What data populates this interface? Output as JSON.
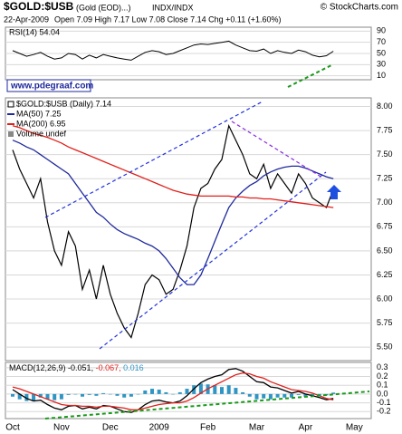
{
  "header": {
    "symbol": "$GOLD:$USB",
    "name": "(Gold (EOD)...)",
    "exchange": "INDX/INDX",
    "credit": "© StockCharts.com",
    "date": "22-Apr-2009",
    "quote": "Open 7.09 High 7.17 Low 7.08 Close 7.14 Chg +0.11 (+1.60%)"
  },
  "watermark": "www.pdegraaf.com",
  "chart_data": [
    {
      "type": "line",
      "title": "RSI(14) 54.04",
      "color": "#000000",
      "values": [
        55,
        50,
        45,
        48,
        52,
        45,
        40,
        42,
        50,
        48,
        40,
        47,
        42,
        48,
        45,
        42,
        40,
        38,
        45,
        52,
        55,
        53,
        48,
        50,
        55,
        60,
        65,
        67,
        66,
        68,
        70,
        72,
        65,
        60,
        55,
        54,
        58,
        50,
        55,
        52,
        50,
        56,
        53,
        47,
        44,
        46,
        54.04,
        null,
        null,
        null
      ],
      "ylim": [
        3,
        97
      ],
      "yticks": [
        90,
        70,
        50,
        30,
        10
      ],
      "grid": true
    },
    {
      "type": "stock",
      "categories": [
        "Oct",
        null,
        null,
        null,
        null,
        null,
        null,
        "Nov",
        null,
        null,
        null,
        null,
        null,
        null,
        "Dec",
        null,
        null,
        null,
        null,
        null,
        null,
        "2009",
        null,
        null,
        null,
        null,
        null,
        null,
        "Feb",
        null,
        null,
        null,
        null,
        null,
        null,
        "Mar",
        null,
        null,
        null,
        null,
        null,
        null,
        "Apr",
        null,
        null,
        null,
        null,
        null,
        null,
        "May"
      ],
      "series": [
        {
          "name": "$GOLD:$USB (Daily) 7.14",
          "color": "#000000",
          "values": [
            7.55,
            7.35,
            7.2,
            7.05,
            7.25,
            6.8,
            6.5,
            6.35,
            6.7,
            6.55,
            6.1,
            6.3,
            6.0,
            6.35,
            6.05,
            5.85,
            5.7,
            5.6,
            5.85,
            6.15,
            6.25,
            6.2,
            6.05,
            6.1,
            6.3,
            6.55,
            6.95,
            7.15,
            7.2,
            7.35,
            7.45,
            7.8,
            7.65,
            7.5,
            7.3,
            7.25,
            7.4,
            7.15,
            7.3,
            7.2,
            7.1,
            7.3,
            7.2,
            7.05,
            7.0,
            6.95,
            7.14,
            null,
            null,
            null
          ]
        },
        {
          "name": "MA(50) 7.25",
          "color": "#1f2a9c",
          "values": [
            7.65,
            7.62,
            7.58,
            7.55,
            7.5,
            7.45,
            7.4,
            7.35,
            7.3,
            7.2,
            7.1,
            7.0,
            6.9,
            6.85,
            6.78,
            6.72,
            6.68,
            6.65,
            6.62,
            6.58,
            6.55,
            6.5,
            6.42,
            6.32,
            6.22,
            6.15,
            6.15,
            6.25,
            6.42,
            6.6,
            6.78,
            6.95,
            7.05,
            7.12,
            7.18,
            7.22,
            7.28,
            7.32,
            7.35,
            7.37,
            7.38,
            7.38,
            7.36,
            7.33,
            7.3,
            7.27,
            7.25,
            null,
            null,
            null
          ]
        },
        {
          "name": "MA(200) 6.95",
          "color": "#e0201b",
          "values": [
            7.8,
            7.78,
            7.75,
            7.72,
            7.7,
            7.68,
            7.65,
            7.62,
            7.58,
            7.55,
            7.52,
            7.49,
            7.46,
            7.43,
            7.4,
            7.37,
            7.34,
            7.31,
            7.28,
            7.25,
            7.22,
            7.19,
            7.16,
            7.13,
            7.11,
            7.09,
            7.08,
            7.07,
            7.07,
            7.07,
            7.07,
            7.07,
            7.06,
            7.06,
            7.05,
            7.05,
            7.04,
            7.04,
            7.03,
            7.02,
            7.01,
            7.0,
            6.99,
            6.98,
            6.97,
            6.96,
            6.95,
            null,
            null,
            null
          ]
        }
      ],
      "volume_label": "Volume undef",
      "ylim": [
        5.36,
        8.09
      ],
      "yticks": [
        {
          "value": 8,
          "label": "8.00"
        },
        7.75,
        {
          "value": 7.5,
          "label": "7.50"
        },
        7.25,
        {
          "value": 7,
          "label": "7.00"
        },
        6.75,
        {
          "value": 6.5,
          "label": "6.50"
        },
        6.25,
        {
          "value": 6,
          "label": "6.00"
        },
        5.75,
        {
          "value": 5.5,
          "label": "5.50"
        }
      ],
      "grid": true
    },
    {
      "type": "macd",
      "title": "MACD(12,26,9)",
      "series": [
        {
          "name": "-0.051,",
          "color": "#000000",
          "kind": "line",
          "values": [
            0.05,
            0.0,
            -0.05,
            -0.08,
            -0.07,
            -0.12,
            -0.16,
            -0.18,
            -0.14,
            -0.13,
            -0.17,
            -0.15,
            -0.17,
            -0.13,
            -0.14,
            -0.17,
            -0.2,
            -0.21,
            -0.18,
            -0.12,
            -0.08,
            -0.07,
            -0.09,
            -0.1,
            -0.08,
            -0.02,
            0.06,
            0.13,
            0.17,
            0.2,
            0.22,
            0.28,
            0.29,
            0.26,
            0.2,
            0.14,
            0.13,
            0.08,
            0.07,
            0.04,
            0.01,
            0.03,
            0.0,
            -0.02,
            -0.04,
            -0.065,
            -0.051,
            null,
            null,
            null
          ]
        },
        {
          "name": "-0.067,",
          "color": "#e0201b",
          "kind": "line",
          "values": [
            0.08,
            0.06,
            0.03,
            0.0,
            -0.03,
            -0.06,
            -0.09,
            -0.12,
            -0.13,
            -0.13,
            -0.14,
            -0.14,
            -0.15,
            -0.14,
            -0.14,
            -0.15,
            -0.16,
            -0.18,
            -0.18,
            -0.16,
            -0.14,
            -0.12,
            -0.11,
            -0.1,
            -0.1,
            -0.08,
            -0.04,
            0.01,
            0.06,
            0.1,
            0.14,
            0.18,
            0.22,
            0.24,
            0.23,
            0.2,
            0.18,
            0.14,
            0.11,
            0.08,
            0.05,
            0.04,
            0.03,
            0.01,
            -0.02,
            -0.05,
            -0.067,
            null,
            null,
            null
          ]
        },
        {
          "name": "0.016",
          "color": "#2f95c4",
          "kind": "histogram",
          "values": [
            -0.03,
            -0.06,
            -0.08,
            -0.08,
            -0.04,
            -0.06,
            -0.07,
            -0.06,
            -0.01,
            0,
            -0.03,
            -0.01,
            -0.02,
            0.01,
            0,
            -0.02,
            -0.04,
            -0.03,
            0,
            0.04,
            0.06,
            0.05,
            0.02,
            0,
            0.02,
            0.06,
            0.1,
            0.12,
            0.11,
            0.1,
            0.08,
            0.1,
            0.07,
            0.02,
            -0.03,
            -0.06,
            -0.05,
            -0.06,
            -0.04,
            -0.04,
            -0.04,
            -0.01,
            -0.03,
            -0.03,
            -0.02,
            -0.015,
            0.016,
            null,
            null,
            null
          ]
        }
      ],
      "ylim": [
        -0.28,
        0.36
      ],
      "yticks": [
        0.3,
        0.2,
        0.1,
        {
          "value": 0,
          "label": "0.0"
        },
        -0.1,
        -0.2
      ],
      "grid": true
    }
  ]
}
